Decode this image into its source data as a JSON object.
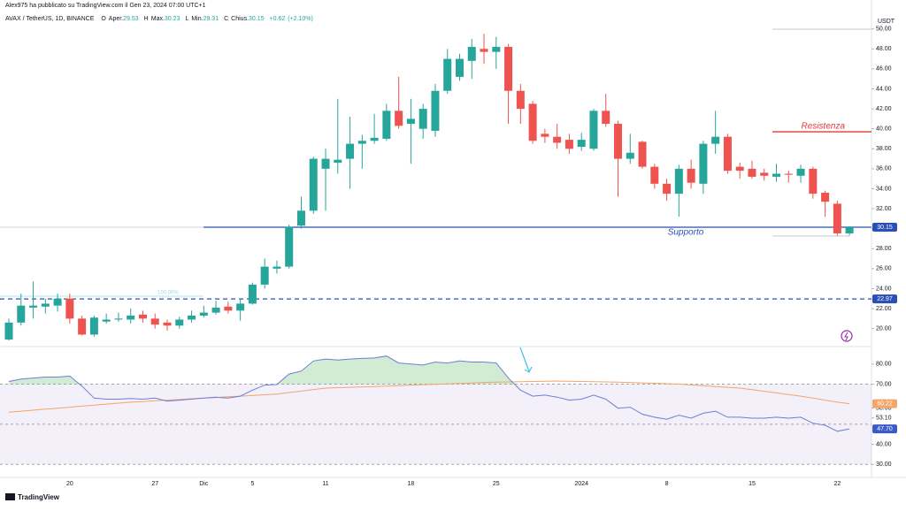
{
  "header": {
    "author": "Alex975 ha pubblicato su TradingView.com il Gen 23, 2024 07:00 UTC+1",
    "symbol": "AVAX / TetherUS, 1D, BINANCE",
    "ohlc": [
      {
        "key": "O",
        "label": "Aper.",
        "value": 29.53
      },
      {
        "key": "H",
        "label": "Max.",
        "value": 30.23
      },
      {
        "key": "L",
        "label": "Min.",
        "value": 29.31
      },
      {
        "key": "C",
        "label": "Chius.",
        "value": 30.15
      }
    ],
    "change": {
      "value": 0.62,
      "label": "+0.62"
    },
    "change_pct": {
      "value": 2.1,
      "label": "(+2.10%)"
    },
    "currency": "USDT",
    "fib_label": "100.00%",
    "footer": "TradingView"
  },
  "chart_data": [
    {
      "type": "candlestick",
      "up_color": "#26a69a",
      "down_color": "#ef5350",
      "grid": false,
      "categories": [
        null,
        null,
        null,
        null,
        null,
        "20",
        null,
        null,
        null,
        null,
        null,
        null,
        "27",
        null,
        null,
        null,
        "Dic",
        null,
        null,
        null,
        "5",
        null,
        null,
        null,
        null,
        null,
        "11",
        null,
        null,
        null,
        null,
        null,
        null,
        "18",
        null,
        null,
        null,
        null,
        null,
        null,
        "25",
        null,
        null,
        null,
        null,
        null,
        null,
        "2024",
        null,
        null,
        null,
        null,
        null,
        null,
        "8",
        null,
        null,
        null,
        null,
        null,
        null,
        "15",
        null,
        null,
        null,
        null,
        null,
        null,
        "22",
        null
      ],
      "open": [
        18.9,
        20.6,
        22.1,
        22.2,
        22.3,
        23.0,
        21.0,
        19.4,
        20.7,
        20.9,
        20.9,
        21.4,
        21.0,
        20.6,
        20.3,
        20.9,
        21.3,
        21.6,
        22.2,
        21.8,
        22.5,
        24.4,
        26.0,
        26.2,
        30.3,
        31.8,
        36.0,
        36.6,
        37.0,
        38.5,
        38.8,
        39.0,
        41.8,
        40.5,
        40.0,
        39.8,
        43.8,
        45.2,
        46.8,
        48.0,
        47.7,
        48.2,
        43.8,
        42.5,
        39.5,
        39.2,
        38.9,
        38.2,
        38.0,
        41.8,
        40.5,
        37.0,
        38.7,
        36.2,
        34.5,
        33.5,
        36.0,
        34.5,
        38.5,
        39.2,
        36.2,
        36.0,
        35.6,
        35.2,
        35.5,
        35.3,
        36.0,
        33.6,
        32.5,
        29.53
      ],
      "high": [
        21.0,
        23.5,
        24.7,
        23.0,
        23.5,
        23.5,
        21.3,
        21.3,
        21.5,
        21.6,
        22.0,
        21.8,
        21.5,
        20.9,
        21.2,
        21.8,
        22.3,
        22.8,
        22.7,
        23.0,
        24.6,
        27.0,
        26.8,
        30.4,
        33.2,
        37.2,
        38.0,
        43.0,
        41.2,
        39.4,
        41.5,
        42.5,
        45.2,
        43.0,
        42.5,
        44.5,
        48.0,
        47.5,
        49.0,
        49.5,
        49.2,
        48.5,
        44.5,
        42.8,
        40.0,
        40.5,
        39.5,
        39.6,
        42.0,
        43.5,
        40.8,
        39.5,
        38.8,
        36.5,
        35.0,
        36.4,
        36.9,
        38.8,
        41.8,
        39.5,
        36.6,
        36.8,
        36.0,
        36.5,
        35.8,
        36.4,
        36.2,
        33.8,
        32.8,
        30.23
      ],
      "low": [
        18.8,
        20.3,
        21.0,
        21.5,
        21.7,
        20.5,
        19.3,
        19.2,
        20.5,
        20.7,
        20.5,
        20.6,
        20.0,
        19.8,
        20.0,
        20.6,
        21.1,
        21.4,
        21.5,
        20.8,
        22.4,
        24.0,
        25.5,
        26.0,
        30.0,
        31.5,
        31.8,
        35.5,
        34.0,
        36.0,
        38.5,
        38.8,
        40.0,
        36.5,
        39.0,
        39.2,
        43.5,
        44.8,
        45.0,
        46.5,
        46.0,
        40.5,
        40.5,
        38.5,
        38.6,
        38.0,
        37.5,
        37.8,
        37.8,
        40.2,
        33.2,
        36.5,
        36.0,
        34.0,
        32.8,
        31.2,
        34.0,
        33.5,
        37.5,
        35.5,
        35.0,
        35.0,
        34.8,
        34.7,
        34.6,
        34.6,
        33.0,
        31.2,
        29.3,
        29.31
      ],
      "close": [
        20.6,
        22.3,
        22.3,
        22.5,
        23.0,
        21.0,
        19.4,
        21.1,
        20.9,
        21.0,
        21.3,
        21.0,
        20.4,
        20.3,
        20.9,
        21.3,
        21.6,
        22.1,
        21.8,
        22.5,
        24.4,
        26.2,
        26.2,
        30.2,
        31.8,
        37.0,
        37.0,
        36.9,
        38.5,
        38.8,
        39.1,
        41.8,
        40.3,
        41.0,
        42.0,
        43.8,
        47.0,
        47.0,
        48.2,
        47.7,
        48.2,
        43.8,
        42.0,
        38.8,
        39.2,
        38.6,
        38.0,
        38.9,
        41.8,
        40.5,
        37.0,
        37.6,
        36.2,
        34.5,
        33.5,
        36.0,
        34.6,
        38.5,
        39.2,
        35.8,
        35.8,
        35.2,
        35.3,
        35.5,
        35.4,
        36.0,
        33.5,
        32.7,
        29.53,
        30.15
      ],
      "ylim": [
        18.2,
        51.3
      ],
      "yticks": [
        {
          "value": 20,
          "label": "20.00"
        },
        {
          "value": 22,
          "label": "22.00"
        },
        {
          "value": 24,
          "label": "24.00"
        },
        {
          "value": 26,
          "label": "26.00"
        },
        {
          "value": 28,
          "label": "28.00"
        },
        {
          "value": 30,
          "label": "30.00"
        },
        {
          "value": 32,
          "label": "32.00"
        },
        {
          "value": 34,
          "label": "34.00"
        },
        {
          "value": 36,
          "label": "36.00"
        },
        {
          "value": 38,
          "label": "38.00"
        },
        {
          "value": 40,
          "label": "40.00"
        },
        {
          "value": 42,
          "label": "42.00"
        },
        {
          "value": 44,
          "label": "44.00"
        },
        {
          "value": 46,
          "label": "46.00"
        },
        {
          "value": 48,
          "label": "48.00"
        },
        {
          "value": 50,
          "label": "50.00"
        }
      ],
      "annotations": [
        {
          "text": "Resistenza",
          "value": 39.7,
          "color": "#e53935"
        },
        {
          "text": "Supporto",
          "value": 30.15,
          "color": "#2a4fb5"
        }
      ],
      "price_lines": [
        {
          "value": 22.97,
          "color": "#2a4fb5"
        }
      ],
      "last_price": {
        "value": 30.15,
        "color": "#2a4fb5"
      }
    },
    {
      "type": "line",
      "series": [
        {
          "color": "#6b7fd7",
          "values": [
            71.3,
            72.5,
            73,
            73.5,
            73.5,
            74,
            69,
            63,
            62.5,
            62.5,
            62.8,
            62.5,
            63,
            61.5,
            62,
            62.5,
            63,
            63.5,
            63,
            64,
            67,
            69.5,
            69.8,
            75,
            76.5,
            81.5,
            82.5,
            82,
            82.5,
            82.8,
            83,
            84,
            80.5,
            80,
            79.5,
            81,
            80.5,
            81.5,
            81,
            81,
            80.5,
            73,
            67,
            64,
            64.5,
            63.5,
            62,
            62.5,
            64.5,
            62.5,
            58,
            58.5,
            55,
            53.5,
            52.5,
            54.5,
            53,
            55.5,
            56.5,
            53.5,
            53.5,
            53,
            53,
            53.5,
            53,
            53.5,
            50.5,
            49.5,
            46.5,
            47.7
          ]
        },
        {
          "color": "#f5a46a",
          "values": [
            56,
            56.5,
            57,
            57.5,
            58,
            58.5,
            59,
            59.5,
            60,
            60.5,
            61,
            61.3,
            61.7,
            62,
            62.3,
            62.7,
            63,
            63.3,
            63.7,
            64,
            64.3,
            64.7,
            65,
            65.8,
            66.5,
            67.3,
            68,
            68.2,
            68.4,
            68.6,
            68.8,
            69,
            69.2,
            69.5,
            69.7,
            69.9,
            70.1,
            70.3,
            70.5,
            70.8,
            71,
            71.1,
            71.2,
            71.3,
            71.4,
            71.5,
            71.4,
            71.3,
            71.2,
            71.1,
            71,
            70.8,
            70.6,
            70.4,
            70.2,
            70,
            69.6,
            69.2,
            68.8,
            68.4,
            68,
            67.2,
            66.4,
            65.6,
            64.8,
            64,
            63,
            62,
            61,
            60.22
          ]
        }
      ],
      "ylim": [
        23.5,
        88.7
      ],
      "yticks": [
        {
          "value": 80,
          "label": "80.00"
        },
        {
          "value": 70,
          "label": "70.00"
        },
        {
          "value": 58.08,
          "label": "58.08"
        },
        {
          "value": 53.1,
          "label": "53.10"
        },
        {
          "value": 40,
          "label": "40.00"
        },
        {
          "value": 30,
          "label": "30.00"
        }
      ],
      "bands": [
        70,
        50,
        30
      ],
      "badges": [
        {
          "value": 60.22,
          "label": "60.22",
          "color": "#f5a46a"
        },
        {
          "value": 47.7,
          "label": "47.70",
          "color": "#3d5bc7"
        }
      ]
    }
  ]
}
